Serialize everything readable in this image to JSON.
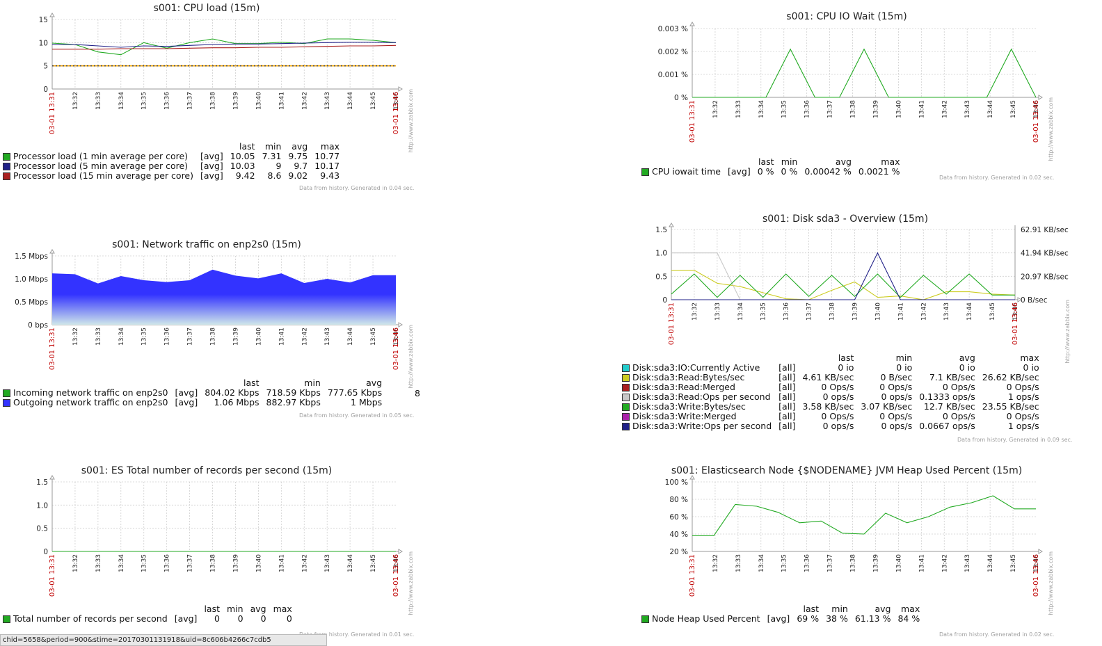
{
  "time_labels": [
    "13:32",
    "13:33",
    "13:34",
    "13:35",
    "13:36",
    "13:37",
    "13:38",
    "13:39",
    "13:40",
    "13:41",
    "13:42",
    "13:43",
    "13:44",
    "13:45",
    "13:46"
  ],
  "start_time": "03-01 13:31",
  "end_time": "03-01 13:46",
  "watermark": "http://www.zabbix.com",
  "status_url": "chid=5658&period=900&stime=20170301131918&uid=8c606b4266c7cdb5",
  "chart_data": [
    {
      "id": "cpu",
      "type": "line",
      "title": "s001: CPU load (15m)",
      "ylim": [
        0,
        15
      ],
      "yticks": [
        "0",
        "5",
        "10",
        "15"
      ],
      "trigger_line": 5,
      "series": [
        {
          "name": "Processor load (1 min average per core)",
          "color": "#22aa22",
          "func": "[avg]",
          "last": "10.05",
          "min": "7.31",
          "avg": "9.75",
          "max": "10.77",
          "values": [
            9.9,
            9.6,
            8.0,
            7.4,
            10.0,
            8.8,
            10.0,
            10.8,
            9.8,
            9.8,
            10.1,
            9.8,
            10.8,
            10.8,
            10.5,
            10.0
          ]
        },
        {
          "name": "Processor load (5 min average per core)",
          "color": "#202088",
          "func": "[avg]",
          "last": "10.03",
          "min": "9",
          "avg": "9.7",
          "max": "10.17",
          "values": [
            9.6,
            9.6,
            9.3,
            9.0,
            9.3,
            9.2,
            9.4,
            9.6,
            9.7,
            9.7,
            9.8,
            9.9,
            10.0,
            10.1,
            10.1,
            10.0
          ]
        },
        {
          "name": "Processor load (15 min average per core)",
          "color": "#aa2020",
          "func": "[avg]",
          "last": "9.42",
          "min": "8.6",
          "avg": "9.02",
          "max": "9.43",
          "values": [
            8.6,
            8.6,
            8.6,
            8.7,
            8.7,
            8.7,
            8.8,
            8.9,
            8.9,
            9.0,
            9.0,
            9.1,
            9.2,
            9.3,
            9.3,
            9.4
          ]
        }
      ],
      "columns": [
        "last",
        "min",
        "avg",
        "max"
      ],
      "generated": "Data from history. Generated in 0.04 sec."
    },
    {
      "id": "iowait",
      "type": "line",
      "title": "s001: CPU IO Wait (15m)",
      "ylim": [
        0,
        0.003
      ],
      "yticks": [
        "0 %",
        "0.001 %",
        "0.002 %",
        "0.003 %"
      ],
      "series": [
        {
          "name": "CPU iowait time",
          "color": "#22aa22",
          "func": "[avg]",
          "last": "0 %",
          "min": "0 %",
          "avg": "0.00042 %",
          "max": "0.0021 %",
          "values": [
            0,
            0,
            0,
            0,
            0.0021,
            0,
            0,
            0.0021,
            0,
            0,
            0,
            0,
            0,
            0.0021,
            0
          ]
        }
      ],
      "columns": [
        "last",
        "min",
        "avg",
        "max"
      ],
      "generated": "Data from history. Generated in 0.02 sec."
    },
    {
      "id": "net",
      "type": "area",
      "title": "s001: Network traffic on enp2s0 (15m)",
      "ylim": [
        0,
        1.5
      ],
      "yticks": [
        "0 bps",
        "0.5 Mbps",
        "1.0 Mbps",
        "1.5 Mbps"
      ],
      "series": [
        {
          "name": "Incoming network traffic on enp2s0",
          "color": "#22aa22",
          "func": "[avg]",
          "last": "804.02 Kbps",
          "min": "718.59 Kbps",
          "avg": "777.65 Kbps",
          "max": "8"
        },
        {
          "name": "Outgoing network traffic on enp2s0",
          "color": "#3333ff",
          "func": "[avg]",
          "last": "1.06 Mbps",
          "min": "882.97 Kbps",
          "avg": "1 Mbps",
          "max": "",
          "values": [
            1.12,
            1.1,
            0.9,
            1.06,
            0.97,
            0.93,
            0.97,
            1.2,
            1.07,
            1.01,
            1.12,
            0.91,
            1.0,
            0.92,
            1.08,
            1.08
          ]
        }
      ],
      "columns": [
        "last",
        "min",
        "avg"
      ],
      "generated": "Data from history. Generated in 0.05 sec."
    },
    {
      "id": "disk",
      "type": "line",
      "title": "s001: Disk sda3 - Overview (15m)",
      "ylim": [
        0,
        1.5
      ],
      "yticks": [
        "0",
        "0.5",
        "1.0",
        "1.5"
      ],
      "yticks_right": [
        "0 B/sec",
        "20.97 KB/sec",
        "41.94 KB/sec",
        "62.91 KB/sec"
      ],
      "series": [
        {
          "name": "Disk:sda3:IO:Currently Active",
          "color": "#22cccc",
          "func": "[all]",
          "last": "0 io",
          "min": "0 io",
          "avg": "0 io",
          "max": "0 io"
        },
        {
          "name": "Disk:sda3:Read:Bytes/sec",
          "color": "#cccc22",
          "func": "[all]",
          "last": "4.61 KB/sec",
          "min": "0 B/sec",
          "avg": "7.1 KB/sec",
          "max": "26.62 KB/sec",
          "values": [
            0.63,
            0.63,
            0.35,
            0.28,
            0.15,
            0.02,
            0,
            0.2,
            0.38,
            0.05,
            0.08,
            0,
            0.17,
            0.17,
            0.12,
            0.1
          ]
        },
        {
          "name": "Disk:sda3:Read:Merged",
          "color": "#aa2020",
          "func": "[all]",
          "last": "0 Ops/s",
          "min": "0 Ops/s",
          "avg": "0 Ops/s",
          "max": "0 Ops/s"
        },
        {
          "name": "Disk:sda3:Read:Ops per second",
          "color": "#c8c8c8",
          "func": "[all]",
          "last": "0 ops/s",
          "min": "0 ops/s",
          "avg": "0.1333 ops/s",
          "max": "1 ops/s",
          "values": [
            1,
            1,
            1,
            0,
            0,
            0,
            0,
            0,
            0,
            0,
            0,
            0,
            0,
            0,
            0,
            0
          ]
        },
        {
          "name": "Disk:sda3:Write:Bytes/sec",
          "color": "#22aa22",
          "func": "[all]",
          "last": "3.58 KB/sec",
          "min": "3.07 KB/sec",
          "avg": "12.7 KB/sec",
          "max": "23.55 KB/sec",
          "values": [
            0.12,
            0.55,
            0.05,
            0.52,
            0.05,
            0.55,
            0.07,
            0.52,
            0.07,
            0.55,
            0.05,
            0.52,
            0.12,
            0.55,
            0.1,
            0.1
          ]
        },
        {
          "name": "Disk:sda3:Write:Merged",
          "color": "#aa22aa",
          "func": "[all]",
          "last": "0 Ops/s",
          "min": "0 Ops/s",
          "avg": "0 Ops/s",
          "max": "0 Ops/s"
        },
        {
          "name": "Disk:sda3:Write:Ops per second",
          "color": "#202088",
          "func": "[all]",
          "last": "0 ops/s",
          "min": "0 ops/s",
          "avg": "0.0667 ops/s",
          "max": "1 ops/s",
          "values": [
            0,
            0,
            0,
            0,
            0,
            0,
            0,
            0,
            0,
            1,
            0,
            0,
            0,
            0,
            0,
            0
          ]
        }
      ],
      "columns": [
        "last",
        "min",
        "avg",
        "max"
      ],
      "generated": "Data from history. Generated in 0.09 sec."
    },
    {
      "id": "es",
      "type": "line",
      "title": "s001: ES Total number of records per second (15m)",
      "ylim": [
        0,
        1.5
      ],
      "yticks": [
        "0",
        "0.5",
        "1.0",
        "1.5"
      ],
      "series": [
        {
          "name": "Total number of records per second",
          "color": "#22aa22",
          "func": "[avg]",
          "last": "0",
          "min": "0",
          "avg": "0",
          "max": "0",
          "values": [
            0,
            0,
            0,
            0,
            0,
            0,
            0,
            0,
            0,
            0,
            0,
            0,
            0,
            0,
            0,
            0
          ]
        }
      ],
      "columns": [
        "last",
        "min",
        "avg",
        "max"
      ],
      "generated": "Data from history. Generated in 0.01 sec."
    },
    {
      "id": "heap",
      "type": "line",
      "title": "s001: Elasticsearch Node {$NODENAME} JVM Heap Used Percent (15m)",
      "ylim": [
        20,
        100
      ],
      "yticks": [
        "20 %",
        "40 %",
        "60 %",
        "80 %",
        "100 %"
      ],
      "series": [
        {
          "name": "Node Heap Used Percent",
          "color": "#22aa22",
          "func": "[avg]",
          "last": "69 %",
          "min": "38 %",
          "avg": "61.13 %",
          "max": "84 %",
          "values": [
            38,
            38,
            74,
            72,
            65,
            53,
            55,
            41,
            40,
            64,
            53,
            60,
            71,
            76,
            84,
            69,
            69
          ]
        }
      ],
      "columns": [
        "last",
        "min",
        "avg",
        "max"
      ],
      "generated": "Data from history. Generated in 0.02 sec."
    }
  ]
}
